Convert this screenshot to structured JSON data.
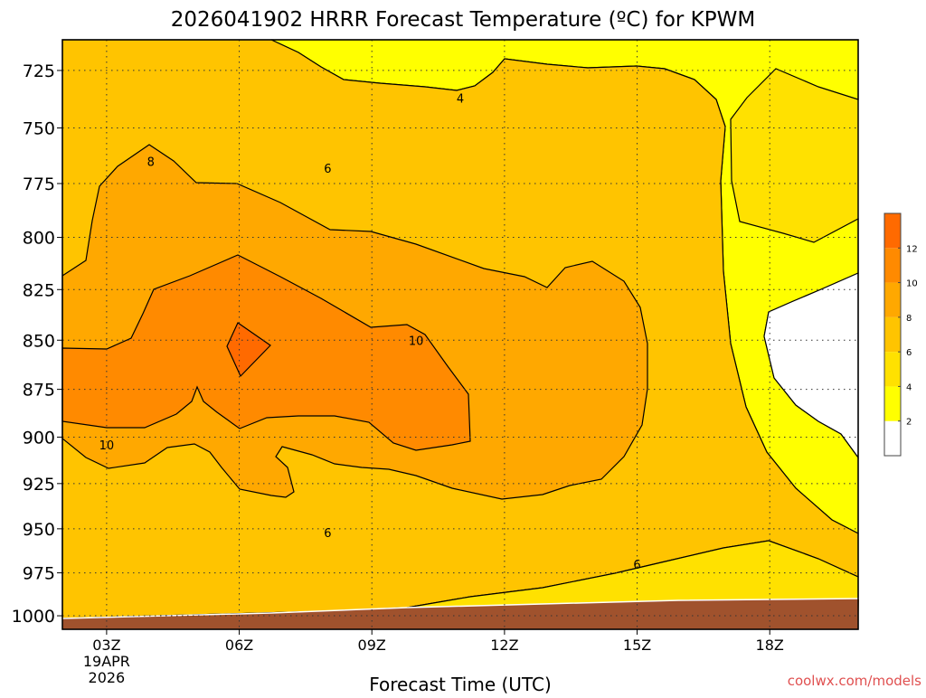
{
  "chart_data": {
    "type": "heatmap",
    "title": "2026041902 HRRR Forecast Temperature (ºC) for KPWM",
    "xlabel": "Forecast Time (UTC)",
    "ylabel": "",
    "x_ticks": [
      {
        "value": 3,
        "label": "03Z"
      },
      {
        "value": 6,
        "label": "06Z"
      },
      {
        "value": 9,
        "label": "09Z"
      },
      {
        "value": 12,
        "label": "12Z"
      },
      {
        "value": 15,
        "label": "15Z"
      },
      {
        "value": 18,
        "label": "18Z"
      }
    ],
    "x_date_label": [
      "19APR",
      "2026"
    ],
    "xlim": [
      2.0,
      20.0
    ],
    "y_ticks": [
      725,
      750,
      775,
      800,
      825,
      850,
      875,
      900,
      925,
      950,
      975,
      1000
    ],
    "ylim": [
      712,
      1008
    ],
    "y_scale": "log-pressure",
    "grid": "dotted",
    "contour_interval": 2,
    "contour_labels": [
      {
        "value": 4,
        "x": 11.0,
        "y": 737
      },
      {
        "value": 6,
        "x": 8.0,
        "y": 768
      },
      {
        "value": 6,
        "x": 8.0,
        "y": 952
      },
      {
        "value": 6,
        "x": 15.0,
        "y": 970
      },
      {
        "value": 8,
        "x": 4.0,
        "y": 765
      },
      {
        "value": 10,
        "x": 10.0,
        "y": 850
      },
      {
        "value": 10,
        "x": 3.0,
        "y": 904
      }
    ],
    "colorbar": {
      "levels": [
        0,
        2,
        4,
        6,
        8,
        10,
        12,
        14
      ],
      "labels": [
        "2",
        "4",
        "6",
        "8",
        "10",
        "12"
      ],
      "colors": [
        "#ffffff",
        "#ffff00",
        "#ffe100",
        "#ffc400",
        "#ffa800",
        "#ff8a00",
        "#ff6a00"
      ]
    },
    "terrain_color": "#a0522d"
  },
  "credit": "coolwx.com/models"
}
